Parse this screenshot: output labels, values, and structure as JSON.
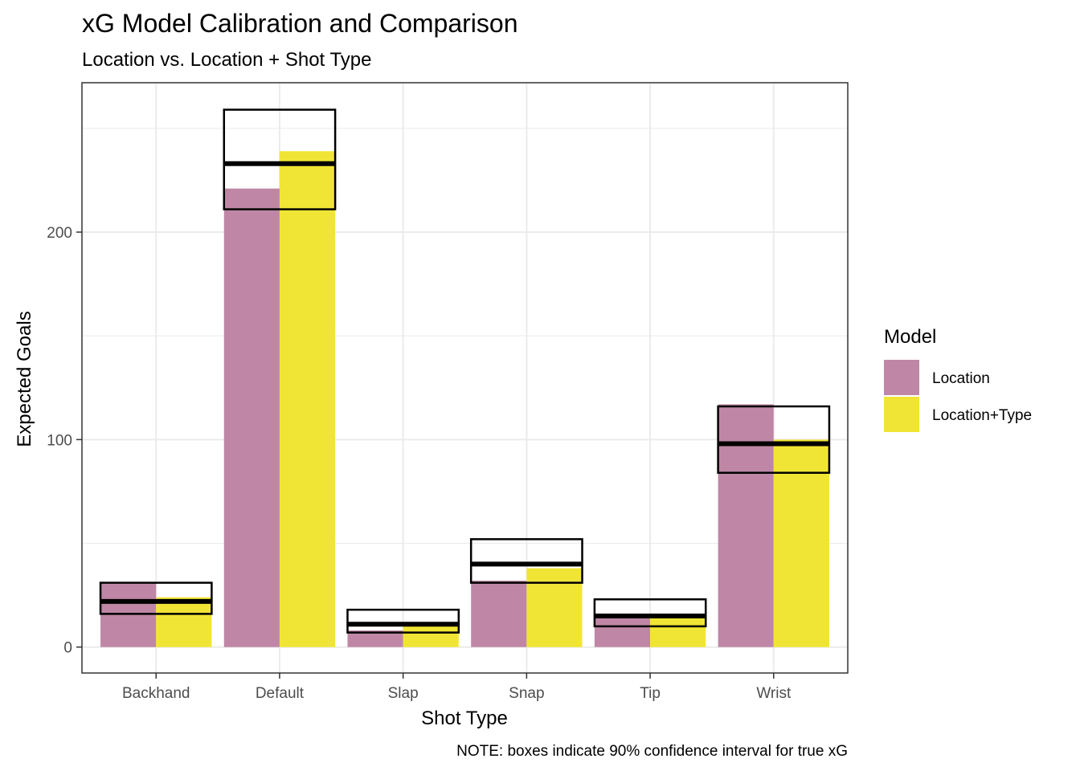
{
  "chart_data": {
    "type": "bar",
    "title": "xG Model Calibration and Comparison",
    "subtitle": "Location vs. Location + Shot Type",
    "xlabel": "Shot Type",
    "ylabel": "Expected Goals",
    "caption": "NOTE: boxes indicate 90% confidence interval for true xG",
    "categories": [
      "Backhand",
      "Default",
      "Slap",
      "Snap",
      "Tip",
      "Wrist"
    ],
    "series": [
      {
        "name": "Location",
        "color": "#bf87a5",
        "values": [
          31,
          221,
          8,
          32,
          14,
          117
        ]
      },
      {
        "name": "Location+Type",
        "color": "#f0e534",
        "values": [
          24,
          239,
          10,
          38,
          16,
          100
        ]
      }
    ],
    "intervals": [
      {
        "low": 16,
        "mid": 22,
        "high": 31
      },
      {
        "low": 211,
        "mid": 233,
        "high": 259
      },
      {
        "low": 7,
        "mid": 11,
        "high": 18
      },
      {
        "low": 31,
        "mid": 40,
        "high": 52
      },
      {
        "low": 10,
        "mid": 15,
        "high": 23
      },
      {
        "low": 84,
        "mid": 98,
        "high": 116
      }
    ],
    "yticks": [
      0,
      100,
      200
    ],
    "ylim": [
      -12.5,
      272
    ],
    "grid": true,
    "legend": {
      "title": "Model",
      "position": "right"
    }
  }
}
